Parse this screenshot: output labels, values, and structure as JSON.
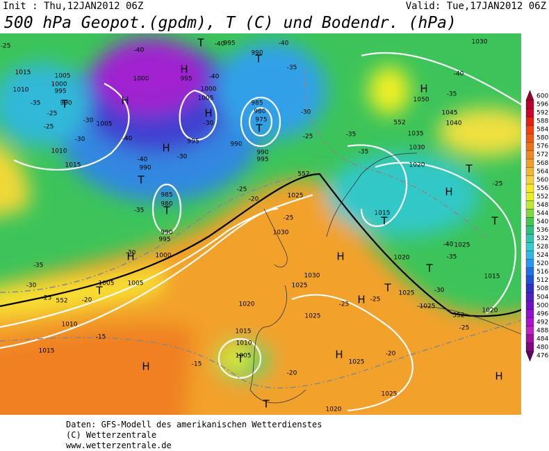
{
  "header": {
    "init": "Init : Thu,12JAN2012 06Z",
    "valid": "Valid: Tue,17JAN2012 06Z",
    "title": "500 hPa Geopot.(gpdm), T (C) und Bodendr. (hPa)"
  },
  "map": {
    "isobar_labels": [
      1015,
      1010,
      1005,
      1000,
      995,
      990,
      1005,
      1010,
      1015,
      1000,
      995,
      1000,
      1005,
      985,
      980,
      975,
      990,
      990,
      995,
      995,
      990,
      985,
      980,
      990,
      995,
      1000,
      1005,
      1005,
      1010,
      1015,
      995,
      990,
      1025,
      1030,
      1030,
      1025,
      1020,
      1025,
      1015,
      1010,
      1005,
      1025,
      1025,
      1020,
      1020,
      1015,
      1020,
      1025,
      1025,
      1025,
      1015,
      1020,
      1030,
      1035,
      1045,
      1040,
      1050,
      1030
    ],
    "temperature_labels": [
      -40,
      -40,
      -40,
      -40,
      -35,
      -40,
      -35,
      -35,
      -25,
      -25,
      -30,
      -30,
      -30,
      -40,
      -40,
      -30,
      -30,
      -25,
      -35,
      -35,
      -25,
      -35,
      -30,
      -25,
      -20,
      -25,
      -35,
      -30,
      -25,
      -20,
      -15,
      -15,
      -25,
      -25,
      -30,
      -35,
      -40,
      -25,
      -20,
      -20,
      -25
    ],
    "height_labels": [
      552,
      552,
      552,
      552
    ],
    "centers": [
      "H",
      "H",
      "T",
      "H",
      "T",
      "H",
      "T",
      "T",
      "H",
      "T",
      "H",
      "T",
      "H",
      "T",
      "T",
      "T",
      "H",
      "H",
      "T",
      "H",
      "T",
      "H",
      "T",
      "H",
      "T",
      "T"
    ]
  },
  "colorbar": {
    "levels": [
      600,
      596,
      592,
      588,
      584,
      580,
      576,
      572,
      568,
      564,
      560,
      556,
      552,
      548,
      544,
      540,
      536,
      532,
      528,
      524,
      520,
      516,
      512,
      508,
      504,
      500,
      496,
      492,
      488,
      484,
      480,
      476
    ],
    "colors": [
      "#9a0030",
      "#b80030",
      "#d00028",
      "#e42010",
      "#f04010",
      "#f05a10",
      "#f07018",
      "#f08820",
      "#f0a028",
      "#f0b830",
      "#f8d040",
      "#f8e820",
      "#e8f020",
      "#c0e830",
      "#80d840",
      "#40c850",
      "#30c080",
      "#30c8b0",
      "#30d0d0",
      "#30b8e8",
      "#2898f0",
      "#2070e8",
      "#2050d8",
      "#3030c8",
      "#5020c0",
      "#7010c8",
      "#9010d0",
      "#b010d0",
      "#c020c0",
      "#a010a0",
      "#800880",
      "#600060"
    ]
  },
  "footer": {
    "lines": [
      "Daten: GFS-Modell des amerikanischen Wetterdienstes",
      "(C) Wetterzentrale",
      "www.wetterzentrale.de"
    ]
  }
}
